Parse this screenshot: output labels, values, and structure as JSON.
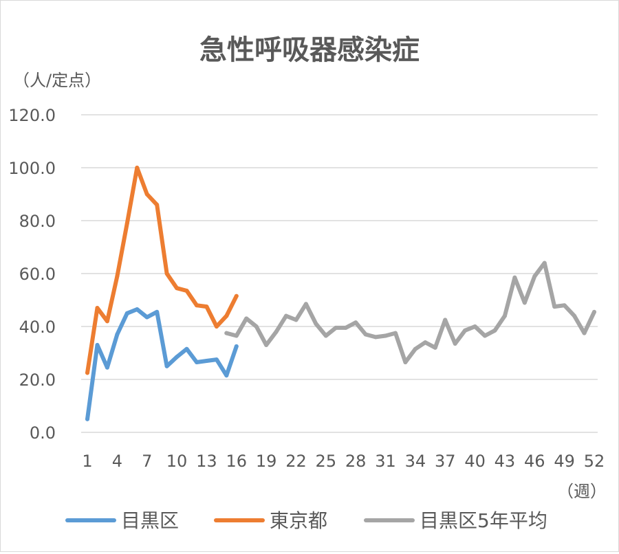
{
  "chart_data": {
    "type": "line",
    "title": "急性呼吸器感染症",
    "ylabel": "（人/定点）",
    "xlabel": "（週）",
    "ylim": [
      0,
      120
    ],
    "yticks": [
      "0.0",
      "20.0",
      "40.0",
      "60.0",
      "80.0",
      "100.0",
      "120.0"
    ],
    "xticks": [
      "1",
      "4",
      "7",
      "10",
      "13",
      "16",
      "19",
      "22",
      "25",
      "28",
      "31",
      "34",
      "37",
      "40",
      "43",
      "46",
      "49",
      "52"
    ],
    "grid": true,
    "legend": "bottom",
    "series": [
      {
        "name": "目黒区",
        "color": "#5b9bd5",
        "x": [
          1,
          2,
          3,
          4,
          5,
          6,
          7,
          8,
          9,
          10,
          11,
          12,
          13,
          14,
          15,
          16
        ],
        "values": [
          5.0,
          33.0,
          24.5,
          37.0,
          45.0,
          46.5,
          43.5,
          45.5,
          25.0,
          28.5,
          31.5,
          26.5,
          27.0,
          27.5,
          21.5,
          32.5
        ]
      },
      {
        "name": "東京都",
        "color": "#ed7d31",
        "x": [
          1,
          2,
          3,
          4,
          5,
          6,
          7,
          8,
          9,
          10,
          11,
          12,
          13,
          14,
          15,
          16
        ],
        "values": [
          22.5,
          47.0,
          42.0,
          59.0,
          79.0,
          100.0,
          90.0,
          86.0,
          60.0,
          54.5,
          53.5,
          48.0,
          47.5,
          40.0,
          44.0,
          51.5
        ]
      },
      {
        "name": "目黒区5年平均",
        "color": "#a5a5a5",
        "x": [
          15,
          16,
          17,
          18,
          19,
          20,
          21,
          22,
          23,
          24,
          25,
          26,
          27,
          28,
          29,
          30,
          31,
          32,
          33,
          34,
          35,
          36,
          37,
          38,
          39,
          40,
          41,
          42,
          43,
          44,
          45,
          46,
          47,
          48,
          49,
          50,
          51,
          52
        ],
        "values": [
          37.5,
          36.5,
          43.0,
          40.0,
          33.0,
          38.0,
          44.0,
          42.5,
          48.5,
          41.0,
          36.5,
          39.5,
          39.5,
          41.5,
          37.0,
          36.0,
          36.5,
          37.5,
          26.5,
          31.5,
          34.0,
          32.0,
          42.5,
          33.5,
          38.5,
          40.0,
          36.5,
          38.5,
          44.0,
          58.5,
          49.0,
          59.0,
          64.0,
          47.5,
          48.0,
          44.0,
          37.5,
          45.5
        ]
      }
    ]
  }
}
